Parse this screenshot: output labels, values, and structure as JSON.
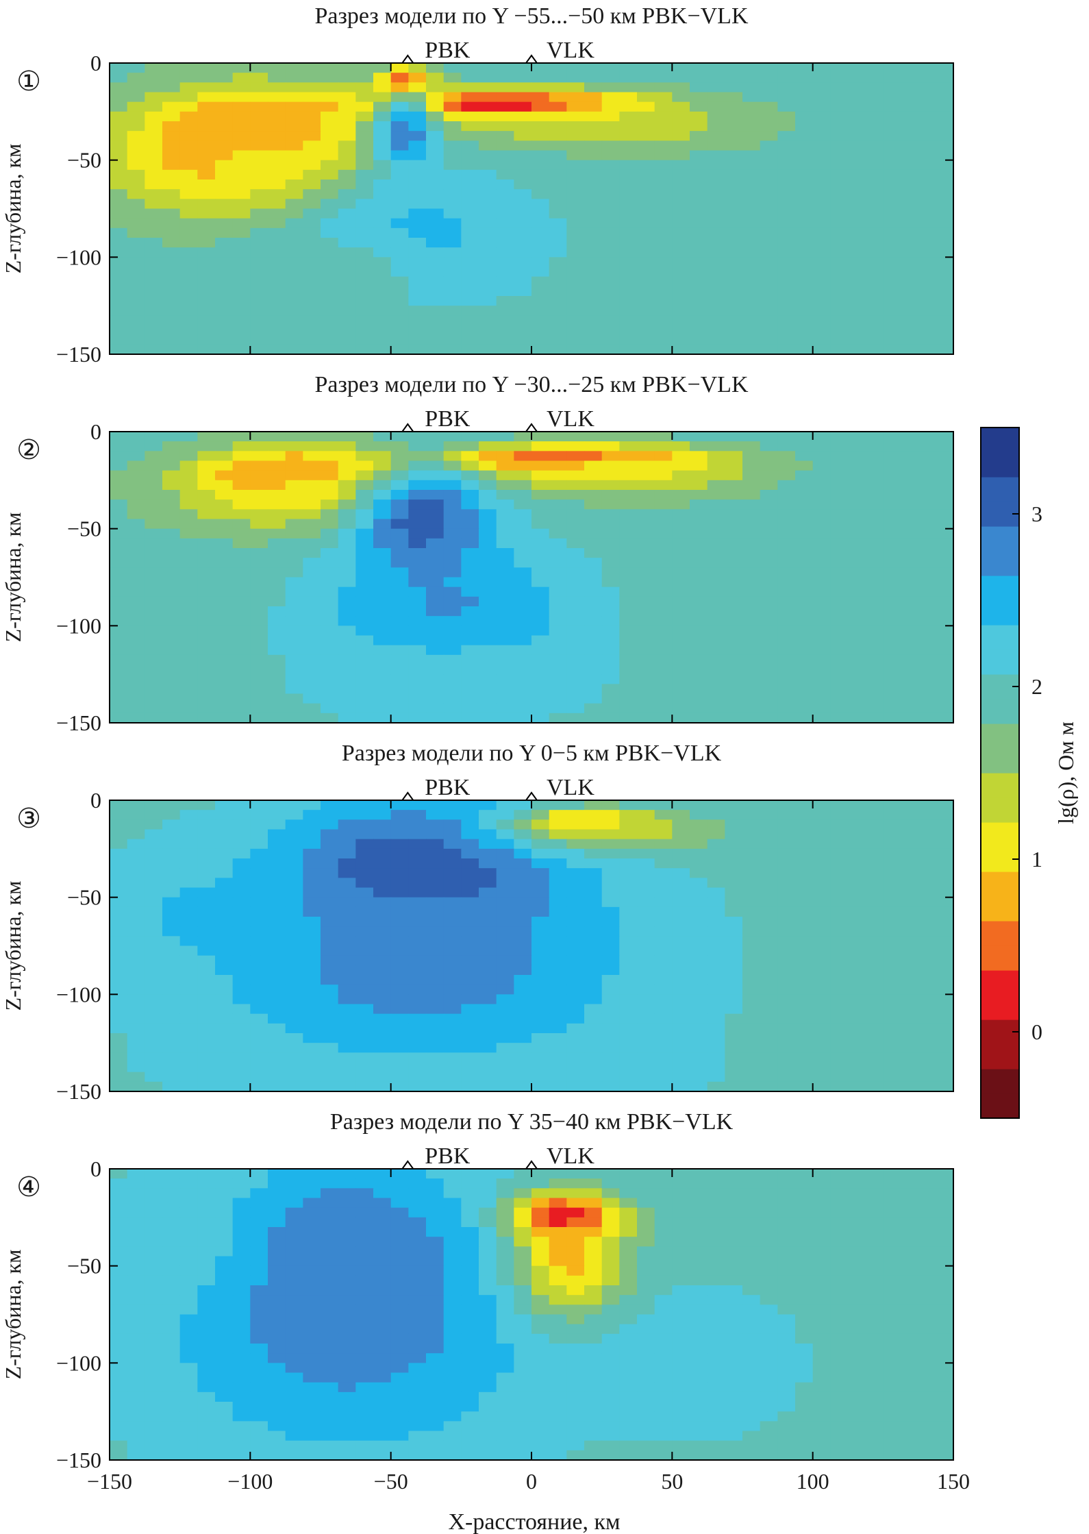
{
  "colors": {
    "colormap": [
      "#6b1016",
      "#a01418",
      "#e81c22",
      "#f26b21",
      "#f7b319",
      "#f2e91c",
      "#c1d535",
      "#82c181",
      "#5fc0b5",
      "#4ec8dd",
      "#1eb4ea",
      "#3a87cf",
      "#2f5fb0",
      "#233c8c"
    ],
    "frame": "#000000"
  },
  "axes": {
    "xlabel": "X-расстояние, км",
    "ylabel": "Z-глубина, км",
    "xticks": [
      "−150",
      "−100",
      "−50",
      "0",
      "50",
      "100",
      "150"
    ],
    "yticks": [
      "0",
      "−50",
      "−100",
      "−150"
    ]
  },
  "colorbar": {
    "label": "lg(ρ), Ом м",
    "ticks": [
      "3",
      "2",
      "1",
      "0"
    ]
  },
  "stations": [
    "PBK",
    "VLK"
  ],
  "panels": [
    {
      "number": "①",
      "title": "Разрез модели по Y −55...−50 км PBK−VLK"
    },
    {
      "number": "②",
      "title": "Разрез модели по Y −30...−25 км PBK−VLK"
    },
    {
      "number": "③",
      "title": "Разрез модели по Y 0−5 км PBK−VLK"
    },
    {
      "number": "④",
      "title": "Разрез модели по Y 35−40 км PBK−VLK"
    }
  ],
  "chart_data": [
    {
      "type": "heatmap",
      "title": "Разрез модели по Y −55...−50 км PBK−VLK",
      "xlabel": "X-расстояние, км",
      "ylabel": "Z-глубина, км",
      "xlim": [
        -150,
        150
      ],
      "ylim": [
        -150,
        0
      ],
      "colorbar": {
        "label": "lg(ρ), Ом м",
        "range": [
          -0.5,
          3.5
        ]
      },
      "background": 1.9,
      "stations": [
        {
          "name": "PBK",
          "x": -44,
          "z": 0
        },
        {
          "name": "VLK",
          "x": 0,
          "z": 0
        }
      ],
      "features": [
        {
          "x": -100,
          "z": -42,
          "rx": 44,
          "rz": 30,
          "value": -0.4
        },
        {
          "x": -100,
          "z": -50,
          "rx": 58,
          "rz": 42,
          "value": 0.9
        },
        {
          "x": -10,
          "z": -22,
          "rx": 60,
          "rz": 10,
          "value": -0.4
        },
        {
          "x": 20,
          "z": -33,
          "rx": 68,
          "rz": 16,
          "value": 1.2
        },
        {
          "x": -45,
          "z": -10,
          "rx": 12,
          "rz": 10,
          "value": -0.4
        },
        {
          "x": -45,
          "z": -35,
          "rx": 14,
          "rz": 28,
          "value": 2.9
        },
        {
          "x": -40,
          "z": -90,
          "rx": 60,
          "rz": 48,
          "value": 2.45
        },
        {
          "x": -80,
          "z": -110,
          "rx": 50,
          "rz": 25,
          "value": 1.8
        }
      ]
    },
    {
      "type": "heatmap",
      "title": "Разрез модели по Y −30...−25 км PBK−VLK",
      "xlabel": "X-расстояние, км",
      "ylabel": "Z-глубина, км",
      "xlim": [
        -150,
        150
      ],
      "ylim": [
        -150,
        0
      ],
      "colorbar": {
        "label": "lg(ρ), Ом м",
        "range": [
          -0.5,
          3.5
        ]
      },
      "background": 1.9,
      "stations": [
        {
          "name": "PBK",
          "x": -44,
          "z": 0
        },
        {
          "name": "VLK",
          "x": 0,
          "z": 0
        }
      ],
      "features": [
        {
          "x": -82,
          "z": -22,
          "rx": 38,
          "rz": 13,
          "value": -0.4
        },
        {
          "x": -82,
          "z": -30,
          "rx": 56,
          "rz": 28,
          "value": 0.9
        },
        {
          "x": 12,
          "z": -15,
          "rx": 58,
          "rz": 9,
          "value": -0.4
        },
        {
          "x": 28,
          "z": -22,
          "rx": 58,
          "rz": 16,
          "value": 1.1
        },
        {
          "x": -38,
          "z": -48,
          "rx": 28,
          "rz": 38,
          "value": 3.3
        },
        {
          "x": -30,
          "z": -95,
          "rx": 62,
          "rz": 55,
          "value": 2.7
        },
        {
          "x": -30,
          "z": -130,
          "rx": 70,
          "rz": 30,
          "value": 2.2
        }
      ]
    },
    {
      "type": "heatmap",
      "title": "Разрез модели по Y 0−5 км PBK−VLK",
      "xlabel": "X-расстояние, км",
      "ylabel": "Z-глубина, км",
      "xlim": [
        -150,
        150
      ],
      "ylim": [
        -150,
        0
      ],
      "colorbar": {
        "label": "lg(ρ), Ом м",
        "range": [
          -0.5,
          3.5
        ]
      },
      "background": 2.0,
      "stations": [
        {
          "name": "PBK",
          "x": -44,
          "z": 0
        },
        {
          "name": "VLK",
          "x": 0,
          "z": 0
        }
      ],
      "features": [
        {
          "x": -40,
          "z": -38,
          "rx": 60,
          "rz": 45,
          "value": 3.4
        },
        {
          "x": -40,
          "z": -85,
          "rx": 95,
          "rz": 68,
          "value": 2.8
        },
        {
          "x": -120,
          "z": -60,
          "rx": 40,
          "rz": 35,
          "value": 2.4
        },
        {
          "x": 20,
          "z": -12,
          "rx": 24,
          "rz": 8,
          "value": -0.3
        },
        {
          "x": 30,
          "z": -16,
          "rx": 48,
          "rz": 14,
          "value": 1.3
        },
        {
          "x": -30,
          "z": -140,
          "rx": 90,
          "rz": 15,
          "value": 2.3
        }
      ]
    },
    {
      "type": "heatmap",
      "title": "Разрез модели по Y 35−40 км PBK−VLK",
      "xlabel": "X-расстояние, км",
      "ylabel": "Z-глубина, км",
      "xlim": [
        -150,
        150
      ],
      "ylim": [
        -150,
        0
      ],
      "colorbar": {
        "label": "lg(ρ), Ом м",
        "range": [
          -0.5,
          3.5
        ]
      },
      "background": 2.0,
      "stations": [
        {
          "name": "PBK",
          "x": -44,
          "z": 0
        },
        {
          "name": "VLK",
          "x": 0,
          "z": 0
        }
      ],
      "features": [
        {
          "x": -65,
          "z": -55,
          "rx": 50,
          "rz": 65,
          "value": 3.3
        },
        {
          "x": -65,
          "z": -85,
          "rx": 85,
          "rz": 80,
          "value": 2.7
        },
        {
          "x": 12,
          "z": -25,
          "rx": 22,
          "rz": 14,
          "value": -0.4
        },
        {
          "x": 15,
          "z": -48,
          "rx": 26,
          "rz": 36,
          "value": 0.8
        },
        {
          "x": 60,
          "z": -100,
          "rx": 38,
          "rz": 40,
          "value": 2.35
        },
        {
          "x": -130,
          "z": -40,
          "rx": 30,
          "rz": 40,
          "value": 2.2
        }
      ]
    }
  ]
}
